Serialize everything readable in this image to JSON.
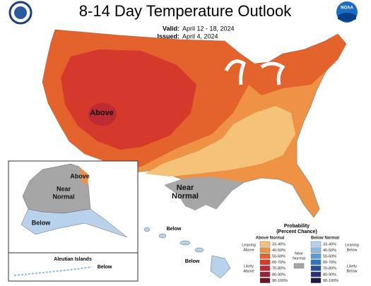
{
  "header": {
    "title": "8-14 Day Temperature Outlook",
    "valid_label": "Valid:",
    "valid": "April 12 - 18, 2024",
    "issued_label": "Issued:",
    "issued": "April 4, 2024",
    "logo_text": "NOAA"
  },
  "map": {
    "above": "Above",
    "near_normal": [
      "Near",
      "Normal"
    ],
    "alaska_above": "Above",
    "alaska_near": [
      "Near",
      "Normal"
    ],
    "alaska_below": "Below",
    "aleutian_title": "Aleutian Islands",
    "aleutian_below": "Below",
    "hawaii_below_1": "Below",
    "hawaii_below_2": "Below"
  },
  "legend": {
    "title": [
      "Probability",
      "(Percent Chance)"
    ],
    "above_header": "Above Normal",
    "below_header": "Below Normal",
    "leaning_above": [
      "Leaning",
      "Above"
    ],
    "likely_above": [
      "Likely",
      "Above"
    ],
    "near_normal": [
      "Near",
      "Normal"
    ],
    "leaning_below": [
      "Leaning",
      "Below"
    ],
    "likely_below": [
      "Likely",
      "Below"
    ],
    "near_color": "#a6a6a6",
    "above_bins": [
      {
        "label": "33-40%",
        "color": "#f5c27a"
      },
      {
        "label": "40-50%",
        "color": "#ee9246"
      },
      {
        "label": "50-60%",
        "color": "#e4622b"
      },
      {
        "label": "60-70%",
        "color": "#d4392c"
      },
      {
        "label": "70-80%",
        "color": "#bc2a33"
      },
      {
        "label": "80-90%",
        "color": "#9c1f3a"
      },
      {
        "label": "90-100%",
        "color": "#6a1424"
      }
    ],
    "below_bins": [
      {
        "label": "33-40%",
        "color": "#b8d2ec"
      },
      {
        "label": "40-50%",
        "color": "#8fb8e2"
      },
      {
        "label": "50-60%",
        "color": "#5a9bd5"
      },
      {
        "label": "60-70%",
        "color": "#2e78be"
      },
      {
        "label": "70-80%",
        "color": "#1f5597"
      },
      {
        "label": "80-90%",
        "color": "#2a2f7a"
      },
      {
        "label": "90-100%",
        "color": "#1c1747"
      }
    ]
  }
}
